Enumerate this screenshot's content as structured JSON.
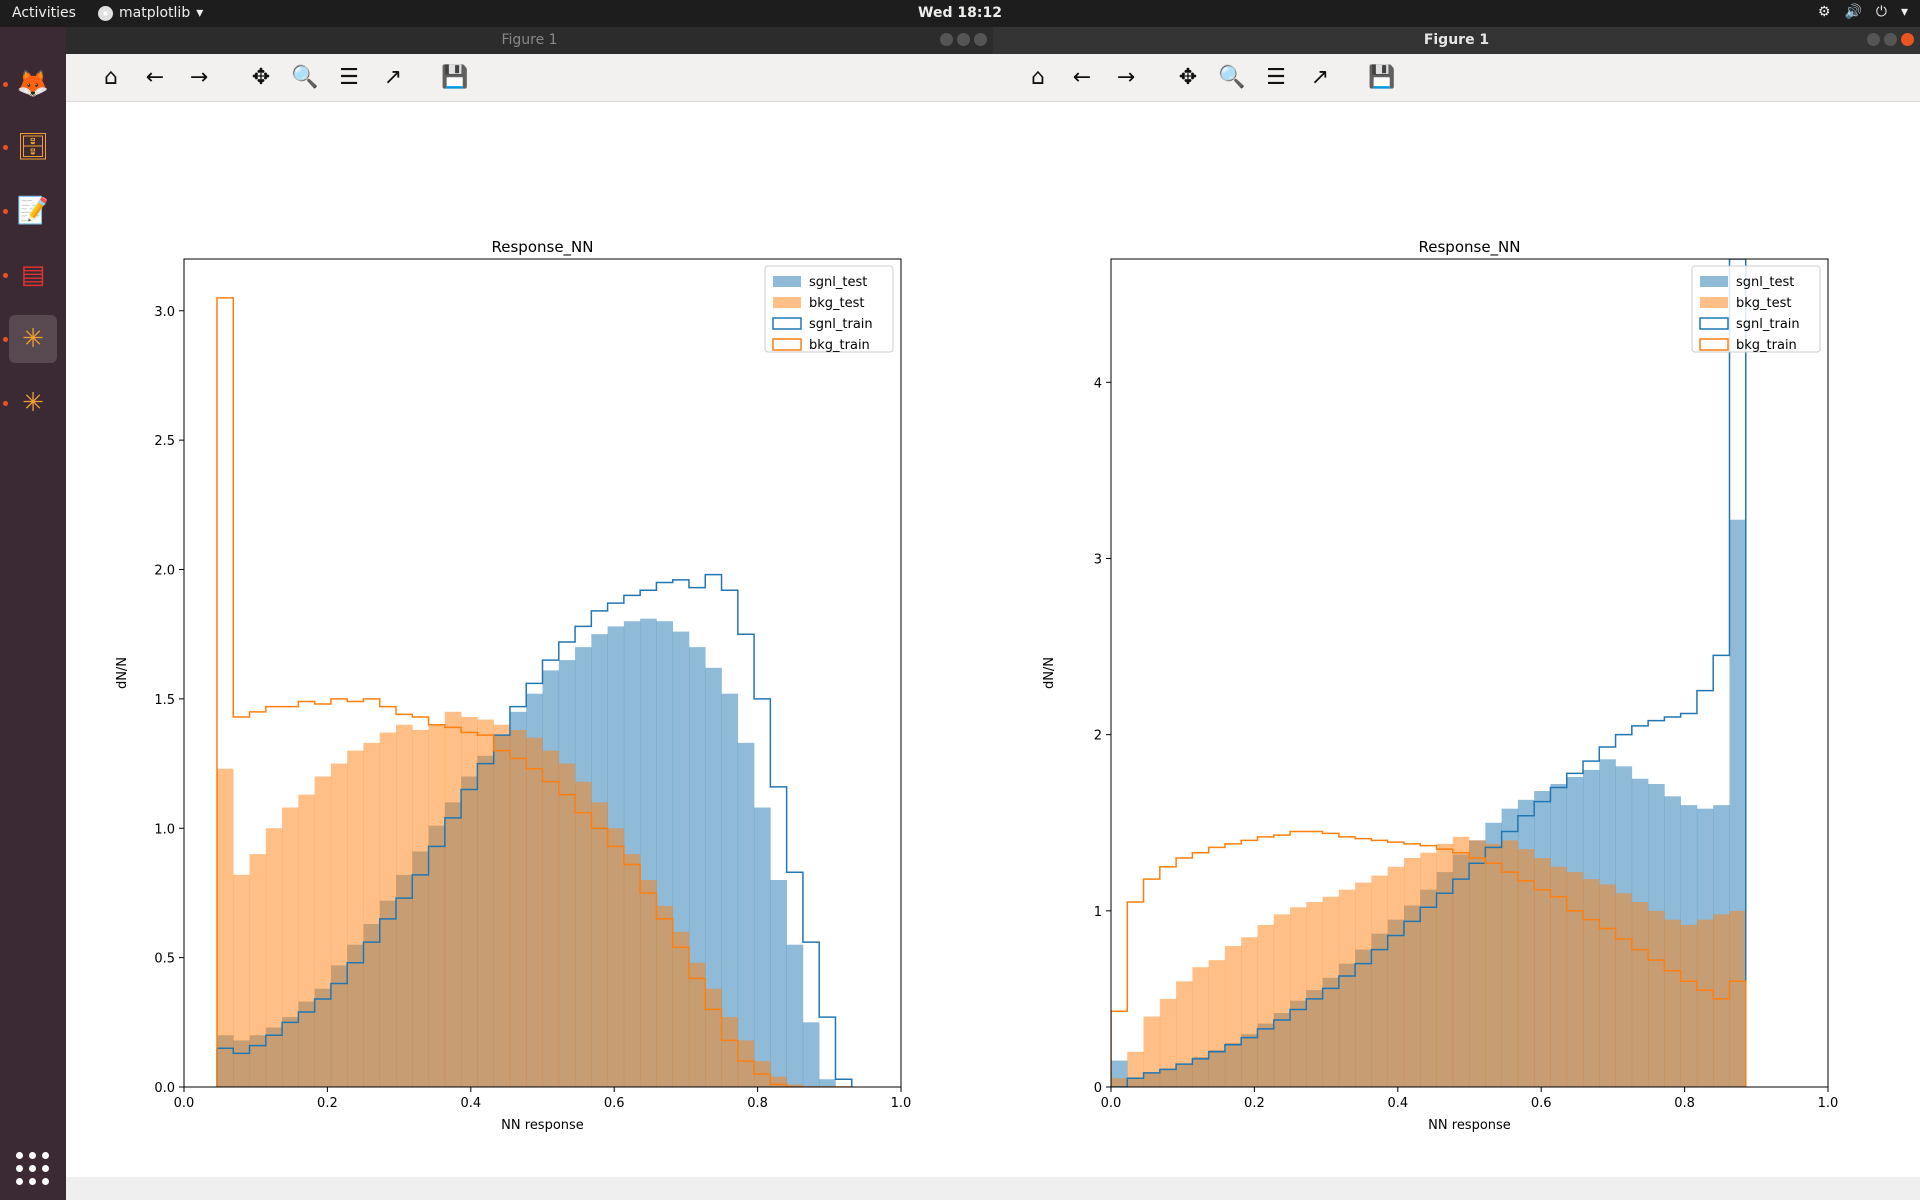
{
  "topbar": {
    "activities": "Activities",
    "app_name": "matplotlib",
    "app_menu_arrow": "▾",
    "clock": "Wed 18:12",
    "tray": [
      "⚙",
      "🔊",
      "⏻",
      "▾"
    ]
  },
  "dock": {
    "items": [
      {
        "name": "firefox-icon",
        "glyph": "🦊"
      },
      {
        "name": "files-icon",
        "glyph": "🗄"
      },
      {
        "name": "text-editor-icon",
        "glyph": "📝"
      },
      {
        "name": "terminal-icon",
        "glyph": "▤"
      },
      {
        "name": "matplotlib-app-icon-1",
        "glyph": "✳"
      },
      {
        "name": "matplotlib-app-icon-2",
        "glyph": "✳"
      }
    ]
  },
  "windows": [
    {
      "title": "Figure 1",
      "active": false
    },
    {
      "title": "Figure 1",
      "active": true
    }
  ],
  "toolbar": {
    "buttons": [
      {
        "name": "home-button",
        "glyph": "⌂"
      },
      {
        "name": "back-button",
        "glyph": "←"
      },
      {
        "name": "forward-button",
        "glyph": "→"
      },
      {
        "name": "pan-button",
        "glyph": "✥"
      },
      {
        "name": "zoom-button",
        "glyph": "🔍"
      },
      {
        "name": "subplots-button",
        "glyph": "☰"
      },
      {
        "name": "edit-axes-button",
        "glyph": "↗"
      },
      {
        "name": "save-button",
        "glyph": "💾"
      }
    ]
  },
  "colors": {
    "signal": "#1f77b4",
    "background": "#ff7f0e",
    "signal_fill": "#8ebad9",
    "background_fill": "#ffbf86",
    "overlap_fill": "#c59b73"
  },
  "chart_data": [
    {
      "type": "histogram",
      "title": "Response_NN",
      "xlabel": "NN response",
      "ylabel": "dN/N",
      "xlim": [
        0.0,
        1.0
      ],
      "ylim": [
        0.0,
        3.2
      ],
      "xticks": [
        "0.0",
        "0.2",
        "0.4",
        "0.6",
        "0.8",
        "1.0"
      ],
      "yticks": [
        "0.0",
        "0.5",
        "1.0",
        "1.5",
        "2.0",
        "2.5",
        "3.0"
      ],
      "legend_position": "top-right",
      "bin_start": 0.046,
      "bin_width": 0.0227,
      "series": [
        {
          "name": "sgnl_test",
          "style": "filled",
          "values": [
            0.2,
            0.18,
            0.2,
            0.23,
            0.27,
            0.33,
            0.38,
            0.47,
            0.55,
            0.63,
            0.72,
            0.82,
            0.91,
            1.01,
            1.1,
            1.2,
            1.28,
            1.36,
            1.45,
            1.52,
            1.61,
            1.65,
            1.7,
            1.75,
            1.78,
            1.8,
            1.81,
            1.8,
            1.76,
            1.7,
            1.62,
            1.52,
            1.33,
            1.08,
            0.8,
            0.55,
            0.25,
            0.03,
            0.0
          ]
        },
        {
          "name": "bkg_test",
          "style": "filled",
          "values": [
            1.23,
            0.82,
            0.9,
            1.0,
            1.08,
            1.13,
            1.2,
            1.25,
            1.3,
            1.33,
            1.37,
            1.4,
            1.38,
            1.4,
            1.45,
            1.43,
            1.42,
            1.4,
            1.38,
            1.35,
            1.3,
            1.25,
            1.18,
            1.1,
            1.0,
            0.9,
            0.8,
            0.7,
            0.6,
            0.48,
            0.38,
            0.27,
            0.18,
            0.1,
            0.04,
            0.01,
            0.0,
            0.0,
            0.0
          ]
        },
        {
          "name": "sgnl_train",
          "style": "step",
          "values": [
            0.15,
            0.13,
            0.16,
            0.2,
            0.25,
            0.29,
            0.34,
            0.4,
            0.48,
            0.56,
            0.65,
            0.73,
            0.82,
            0.93,
            1.04,
            1.15,
            1.25,
            1.36,
            1.47,
            1.56,
            1.65,
            1.72,
            1.78,
            1.84,
            1.87,
            1.9,
            1.92,
            1.95,
            1.96,
            1.93,
            1.98,
            1.92,
            1.75,
            1.5,
            1.16,
            0.83,
            0.56,
            0.27,
            0.03
          ]
        },
        {
          "name": "bkg_train",
          "style": "step",
          "values": [
            3.05,
            1.43,
            1.45,
            1.47,
            1.47,
            1.49,
            1.48,
            1.5,
            1.49,
            1.5,
            1.47,
            1.44,
            1.43,
            1.4,
            1.39,
            1.37,
            1.36,
            1.3,
            1.27,
            1.23,
            1.18,
            1.13,
            1.06,
            1.0,
            0.93,
            0.86,
            0.75,
            0.65,
            0.54,
            0.42,
            0.3,
            0.18,
            0.1,
            0.05,
            0.01,
            0.0,
            0.0,
            0.0,
            0.0
          ]
        }
      ]
    },
    {
      "type": "histogram",
      "title": "Response_NN",
      "xlabel": "NN response",
      "ylabel": "dN/N",
      "xlim": [
        0.0,
        1.0
      ],
      "ylim": [
        0.0,
        4.7
      ],
      "xticks": [
        "0.0",
        "0.2",
        "0.4",
        "0.6",
        "0.8",
        "1.0"
      ],
      "yticks": [
        "0",
        "1",
        "2",
        "3",
        "4"
      ],
      "legend_position": "top-right",
      "bin_start": 0.0,
      "bin_width": 0.0227,
      "series": [
        {
          "name": "sgnl_test",
          "style": "filled",
          "values": [
            0.15,
            0.05,
            0.08,
            0.1,
            0.13,
            0.17,
            0.21,
            0.25,
            0.3,
            0.36,
            0.42,
            0.49,
            0.55,
            0.62,
            0.7,
            0.78,
            0.87,
            0.95,
            1.03,
            1.12,
            1.22,
            1.32,
            1.4,
            1.5,
            1.58,
            1.63,
            1.68,
            1.72,
            1.76,
            1.8,
            1.86,
            1.82,
            1.75,
            1.72,
            1.65,
            1.6,
            1.58,
            1.6,
            3.22
          ]
        },
        {
          "name": "bkg_test",
          "style": "filled",
          "values": [
            0.05,
            0.2,
            0.4,
            0.5,
            0.6,
            0.68,
            0.72,
            0.8,
            0.85,
            0.92,
            0.98,
            1.02,
            1.05,
            1.08,
            1.12,
            1.16,
            1.2,
            1.25,
            1.3,
            1.33,
            1.38,
            1.42,
            1.4,
            1.38,
            1.4,
            1.35,
            1.3,
            1.25,
            1.22,
            1.18,
            1.15,
            1.1,
            1.05,
            1.0,
            0.95,
            0.92,
            0.95,
            0.98,
            1.0
          ]
        },
        {
          "name": "sgnl_train",
          "style": "step",
          "values": [
            0.0,
            0.05,
            0.08,
            0.1,
            0.13,
            0.16,
            0.2,
            0.24,
            0.28,
            0.33,
            0.38,
            0.44,
            0.5,
            0.56,
            0.63,
            0.7,
            0.78,
            0.86,
            0.94,
            1.02,
            1.1,
            1.18,
            1.27,
            1.36,
            1.45,
            1.54,
            1.62,
            1.7,
            1.78,
            1.85,
            1.93,
            2.0,
            2.05,
            2.08,
            2.1,
            2.12,
            2.25,
            2.45,
            5.0
          ]
        },
        {
          "name": "bkg_train",
          "style": "step",
          "values": [
            0.43,
            1.05,
            1.18,
            1.25,
            1.3,
            1.33,
            1.36,
            1.38,
            1.4,
            1.42,
            1.43,
            1.45,
            1.45,
            1.44,
            1.42,
            1.41,
            1.4,
            1.39,
            1.38,
            1.37,
            1.35,
            1.33,
            1.3,
            1.27,
            1.22,
            1.17,
            1.12,
            1.08,
            1.0,
            0.95,
            0.9,
            0.84,
            0.78,
            0.72,
            0.66,
            0.6,
            0.55,
            0.5,
            0.6
          ]
        }
      ]
    }
  ]
}
